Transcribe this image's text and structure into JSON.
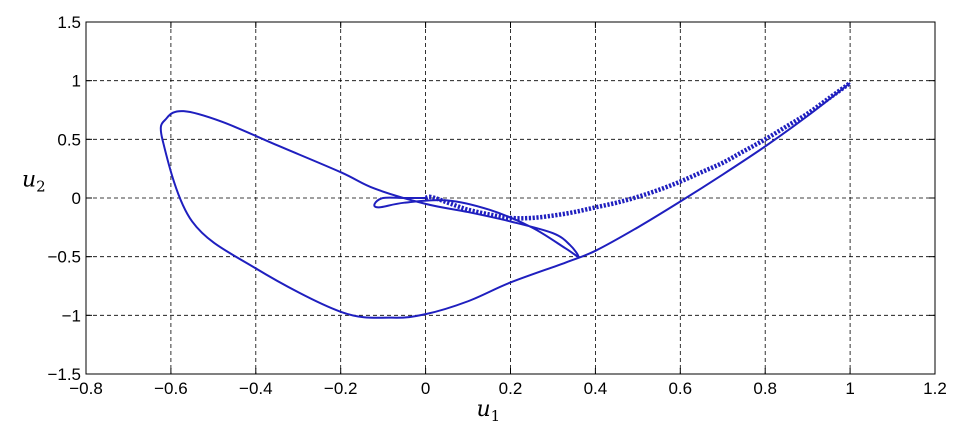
{
  "chart_data": {
    "type": "line",
    "xlabel": "u",
    "xlabel_sub": "1",
    "ylabel": "u",
    "ylabel_sub": "2",
    "xlim": [
      -0.8,
      1.2
    ],
    "ylim": [
      -1.5,
      1.5
    ],
    "xticks": [
      "−0.8",
      "−0.6",
      "−0.4",
      "−0.2",
      "0",
      "0.2",
      "0.4",
      "0.6",
      "0.8",
      "1",
      "1.2"
    ],
    "yticks": [
      "1.5",
      "1",
      "0.5",
      "0",
      "−0.5",
      "−1",
      "−1.5"
    ],
    "grid": true,
    "line_color": "#1f1fbf",
    "series": [
      {
        "style": "solid",
        "x": [
          1.0,
          0.9,
          0.8,
          0.7,
          0.6,
          0.5,
          0.4,
          0.33,
          0.2,
          0.1,
          0.0,
          -0.08,
          -0.2,
          -0.4,
          -0.55,
          -0.62,
          -0.61,
          -0.57,
          -0.48,
          -0.35,
          -0.2,
          -0.12,
          0.0,
          0.1,
          0.2,
          0.3,
          0.34,
          0.36,
          0.33,
          0.25,
          0.15,
          0.05,
          -0.05,
          -0.11,
          -0.12,
          -0.1,
          -0.05,
          0.0
        ],
        "y": [
          0.98,
          0.7,
          0.44,
          0.2,
          -0.03,
          -0.25,
          -0.45,
          -0.55,
          -0.72,
          -0.88,
          -0.99,
          -1.02,
          -0.97,
          -0.6,
          -0.2,
          0.5,
          0.68,
          0.74,
          0.65,
          0.45,
          0.22,
          0.08,
          -0.05,
          -0.12,
          -0.2,
          -0.3,
          -0.4,
          -0.5,
          -0.43,
          -0.25,
          -0.1,
          -0.02,
          -0.04,
          -0.08,
          -0.05,
          0.0,
          0.0,
          0.0
        ]
      },
      {
        "style": "dotted",
        "x": [
          0.0,
          0.01,
          0.03,
          0.06,
          0.1,
          0.15,
          0.2,
          0.25,
          0.3,
          0.35,
          0.4,
          0.45,
          0.5,
          0.55,
          0.6,
          0.65,
          0.7,
          0.75,
          0.8,
          0.85,
          0.9,
          0.95,
          1.0
        ],
        "y": [
          0.0,
          0.01,
          -0.01,
          -0.05,
          -0.1,
          -0.14,
          -0.17,
          -0.17,
          -0.15,
          -0.12,
          -0.08,
          -0.04,
          0.01,
          0.07,
          0.14,
          0.22,
          0.3,
          0.4,
          0.5,
          0.61,
          0.72,
          0.85,
          0.98
        ]
      }
    ]
  }
}
